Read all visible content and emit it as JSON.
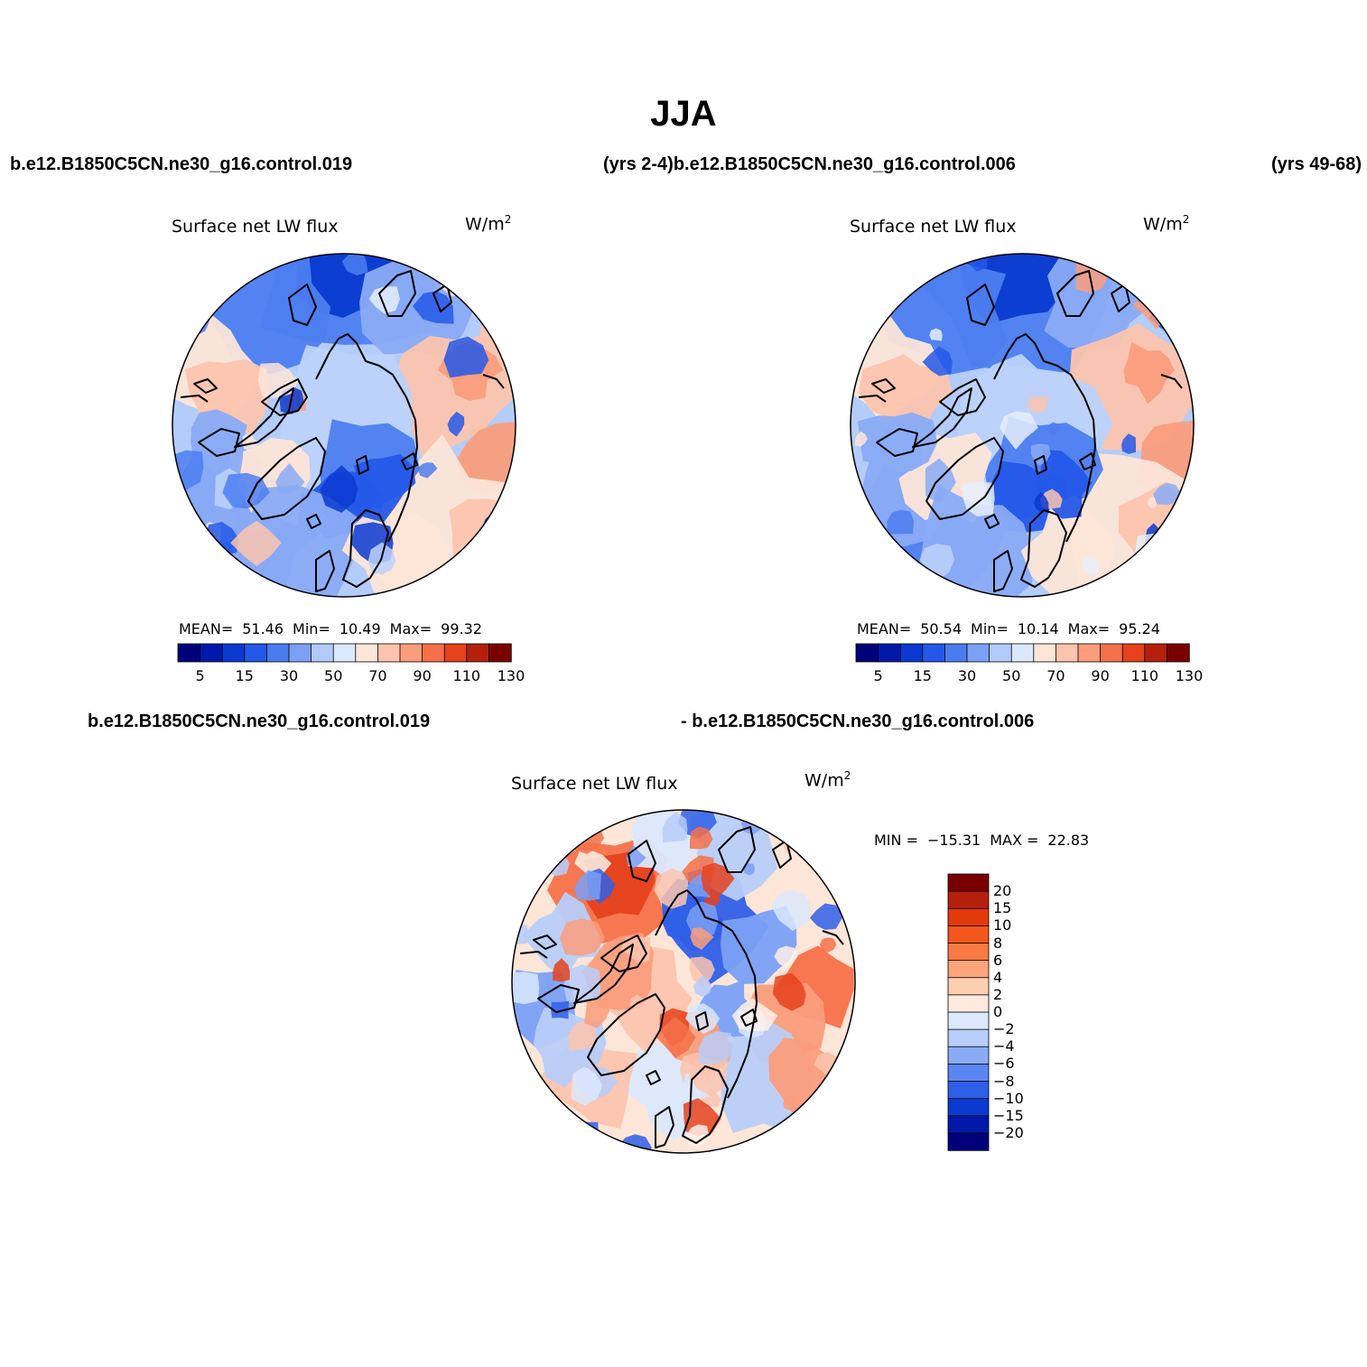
{
  "title": "JJA",
  "top_left_case": "b.e12.B1850C5CN.ne30_g16.control.019",
  "top_middle_case": "(yrs 2-4)b.e12.B1850C5CN.ne30_g16.control.006",
  "top_right_case": "(yrs 49-68)",
  "diff_label_left": "b.e12.B1850C5CN.ne30_g16.control.019",
  "diff_label_right": "- b.e12.B1850C5CN.ne30_g16.control.006",
  "panels": [
    {
      "title": "Surface net LW flux",
      "units": "W/m",
      "units_sup": "2",
      "stats": {
        "mean_label": "MEAN=",
        "mean": "51.46",
        "min_label": "Min=",
        "min": "10.49",
        "max_label": "Max=",
        "max": "99.32"
      }
    },
    {
      "title": "Surface net LW flux",
      "units": "W/m",
      "units_sup": "2",
      "stats": {
        "mean_label": "MEAN=",
        "mean": "50.54",
        "min_label": "Min=",
        "min": "10.14",
        "max_label": "Max=",
        "max": "95.24"
      }
    },
    {
      "title": "Surface net LW flux",
      "units": "W/m",
      "units_sup": "2",
      "stats": {
        "min_label": "MIN =",
        "min": "−15.31",
        "max_label": "MAX =",
        "max": "22.83"
      }
    }
  ],
  "colorbar_abs": {
    "colors": [
      "#00007a",
      "#0019a8",
      "#0a3ad0",
      "#2458e8",
      "#4a7cf0",
      "#7ba0f5",
      "#b2cafa",
      "#dbe8fd",
      "#fde5d8",
      "#fcc4ae",
      "#fa9d7c",
      "#f57149",
      "#e5421c",
      "#b5200c",
      "#7a0000"
    ],
    "tick_labels": [
      "5",
      "15",
      "30",
      "50",
      "70",
      "90",
      "110",
      "130"
    ]
  },
  "colorbar_diff": {
    "colors": [
      "#7a0000",
      "#b5200c",
      "#e33a0c",
      "#f5561e",
      "#fa7a44",
      "#fca47c",
      "#fdcfb2",
      "#feeadf",
      "#dbe8fd",
      "#b8cdf9",
      "#8cabf6",
      "#5a86f1",
      "#2f5fe8",
      "#0a3ad0",
      "#0019a8",
      "#00007a"
    ],
    "tick_labels": [
      "20",
      "15",
      "10",
      "8",
      "6",
      "4",
      "2",
      "0",
      "−2",
      "−4",
      "−6",
      "−8",
      "−10",
      "−15",
      "−20"
    ]
  },
  "map_colors": {
    "panel1": [
      "#e6eefc",
      "#bcd2fa",
      "#8aabf5",
      "#4d7ef0",
      "#2458e8",
      "#0a3ad0",
      "#fde5d8",
      "#fcc4ae",
      "#fa9d7c"
    ],
    "panel2": [
      "#e6eefc",
      "#bcd2fa",
      "#8aabf5",
      "#4d7ef0",
      "#2458e8",
      "#0a3ad0",
      "#fde5d8",
      "#fcc4ae",
      "#fa9d7c"
    ],
    "diff": [
      "#fdf1ea",
      "#fcc4ae",
      "#fa9d7c",
      "#f57149",
      "#e5421c",
      "#dbe8fd",
      "#b8cdf9",
      "#7ba0f5",
      "#2f5fe8"
    ]
  }
}
